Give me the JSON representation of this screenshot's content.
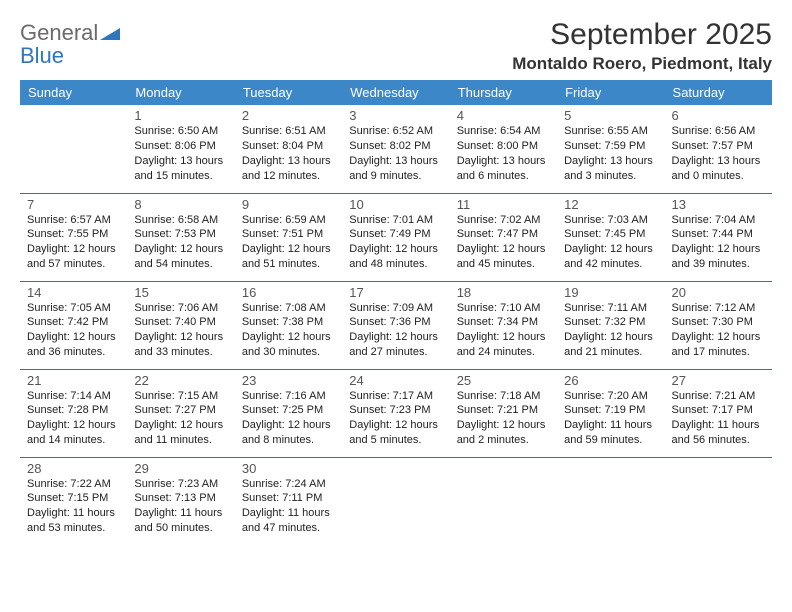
{
  "logo": {
    "text1": "General",
    "text2": "Blue"
  },
  "title": "September 2025",
  "location": "Montaldo Roero, Piedmont, Italy",
  "colors": {
    "header_bg": "#3b87c8",
    "header_text": "#ffffff",
    "row_border": "#3b6fa0",
    "logo_gray": "#6b6b6b",
    "logo_blue": "#2f76bc"
  },
  "weekdays": [
    "Sunday",
    "Monday",
    "Tuesday",
    "Wednesday",
    "Thursday",
    "Friday",
    "Saturday"
  ],
  "weeks": [
    [
      null,
      {
        "d": "1",
        "sr": "6:50 AM",
        "ss": "8:06 PM",
        "dl": "13 hours and 15 minutes."
      },
      {
        "d": "2",
        "sr": "6:51 AM",
        "ss": "8:04 PM",
        "dl": "13 hours and 12 minutes."
      },
      {
        "d": "3",
        "sr": "6:52 AM",
        "ss": "8:02 PM",
        "dl": "13 hours and 9 minutes."
      },
      {
        "d": "4",
        "sr": "6:54 AM",
        "ss": "8:00 PM",
        "dl": "13 hours and 6 minutes."
      },
      {
        "d": "5",
        "sr": "6:55 AM",
        "ss": "7:59 PM",
        "dl": "13 hours and 3 minutes."
      },
      {
        "d": "6",
        "sr": "6:56 AM",
        "ss": "7:57 PM",
        "dl": "13 hours and 0 minutes."
      }
    ],
    [
      {
        "d": "7",
        "sr": "6:57 AM",
        "ss": "7:55 PM",
        "dl": "12 hours and 57 minutes."
      },
      {
        "d": "8",
        "sr": "6:58 AM",
        "ss": "7:53 PM",
        "dl": "12 hours and 54 minutes."
      },
      {
        "d": "9",
        "sr": "6:59 AM",
        "ss": "7:51 PM",
        "dl": "12 hours and 51 minutes."
      },
      {
        "d": "10",
        "sr": "7:01 AM",
        "ss": "7:49 PM",
        "dl": "12 hours and 48 minutes."
      },
      {
        "d": "11",
        "sr": "7:02 AM",
        "ss": "7:47 PM",
        "dl": "12 hours and 45 minutes."
      },
      {
        "d": "12",
        "sr": "7:03 AM",
        "ss": "7:45 PM",
        "dl": "12 hours and 42 minutes."
      },
      {
        "d": "13",
        "sr": "7:04 AM",
        "ss": "7:44 PM",
        "dl": "12 hours and 39 minutes."
      }
    ],
    [
      {
        "d": "14",
        "sr": "7:05 AM",
        "ss": "7:42 PM",
        "dl": "12 hours and 36 minutes."
      },
      {
        "d": "15",
        "sr": "7:06 AM",
        "ss": "7:40 PM",
        "dl": "12 hours and 33 minutes."
      },
      {
        "d": "16",
        "sr": "7:08 AM",
        "ss": "7:38 PM",
        "dl": "12 hours and 30 minutes."
      },
      {
        "d": "17",
        "sr": "7:09 AM",
        "ss": "7:36 PM",
        "dl": "12 hours and 27 minutes."
      },
      {
        "d": "18",
        "sr": "7:10 AM",
        "ss": "7:34 PM",
        "dl": "12 hours and 24 minutes."
      },
      {
        "d": "19",
        "sr": "7:11 AM",
        "ss": "7:32 PM",
        "dl": "12 hours and 21 minutes."
      },
      {
        "d": "20",
        "sr": "7:12 AM",
        "ss": "7:30 PM",
        "dl": "12 hours and 17 minutes."
      }
    ],
    [
      {
        "d": "21",
        "sr": "7:14 AM",
        "ss": "7:28 PM",
        "dl": "12 hours and 14 minutes."
      },
      {
        "d": "22",
        "sr": "7:15 AM",
        "ss": "7:27 PM",
        "dl": "12 hours and 11 minutes."
      },
      {
        "d": "23",
        "sr": "7:16 AM",
        "ss": "7:25 PM",
        "dl": "12 hours and 8 minutes."
      },
      {
        "d": "24",
        "sr": "7:17 AM",
        "ss": "7:23 PM",
        "dl": "12 hours and 5 minutes."
      },
      {
        "d": "25",
        "sr": "7:18 AM",
        "ss": "7:21 PM",
        "dl": "12 hours and 2 minutes."
      },
      {
        "d": "26",
        "sr": "7:20 AM",
        "ss": "7:19 PM",
        "dl": "11 hours and 59 minutes."
      },
      {
        "d": "27",
        "sr": "7:21 AM",
        "ss": "7:17 PM",
        "dl": "11 hours and 56 minutes."
      }
    ],
    [
      {
        "d": "28",
        "sr": "7:22 AM",
        "ss": "7:15 PM",
        "dl": "11 hours and 53 minutes."
      },
      {
        "d": "29",
        "sr": "7:23 AM",
        "ss": "7:13 PM",
        "dl": "11 hours and 50 minutes."
      },
      {
        "d": "30",
        "sr": "7:24 AM",
        "ss": "7:11 PM",
        "dl": "11 hours and 47 minutes."
      },
      null,
      null,
      null,
      null
    ]
  ],
  "labels": {
    "sunrise": "Sunrise:",
    "sunset": "Sunset:",
    "daylight": "Daylight:"
  }
}
